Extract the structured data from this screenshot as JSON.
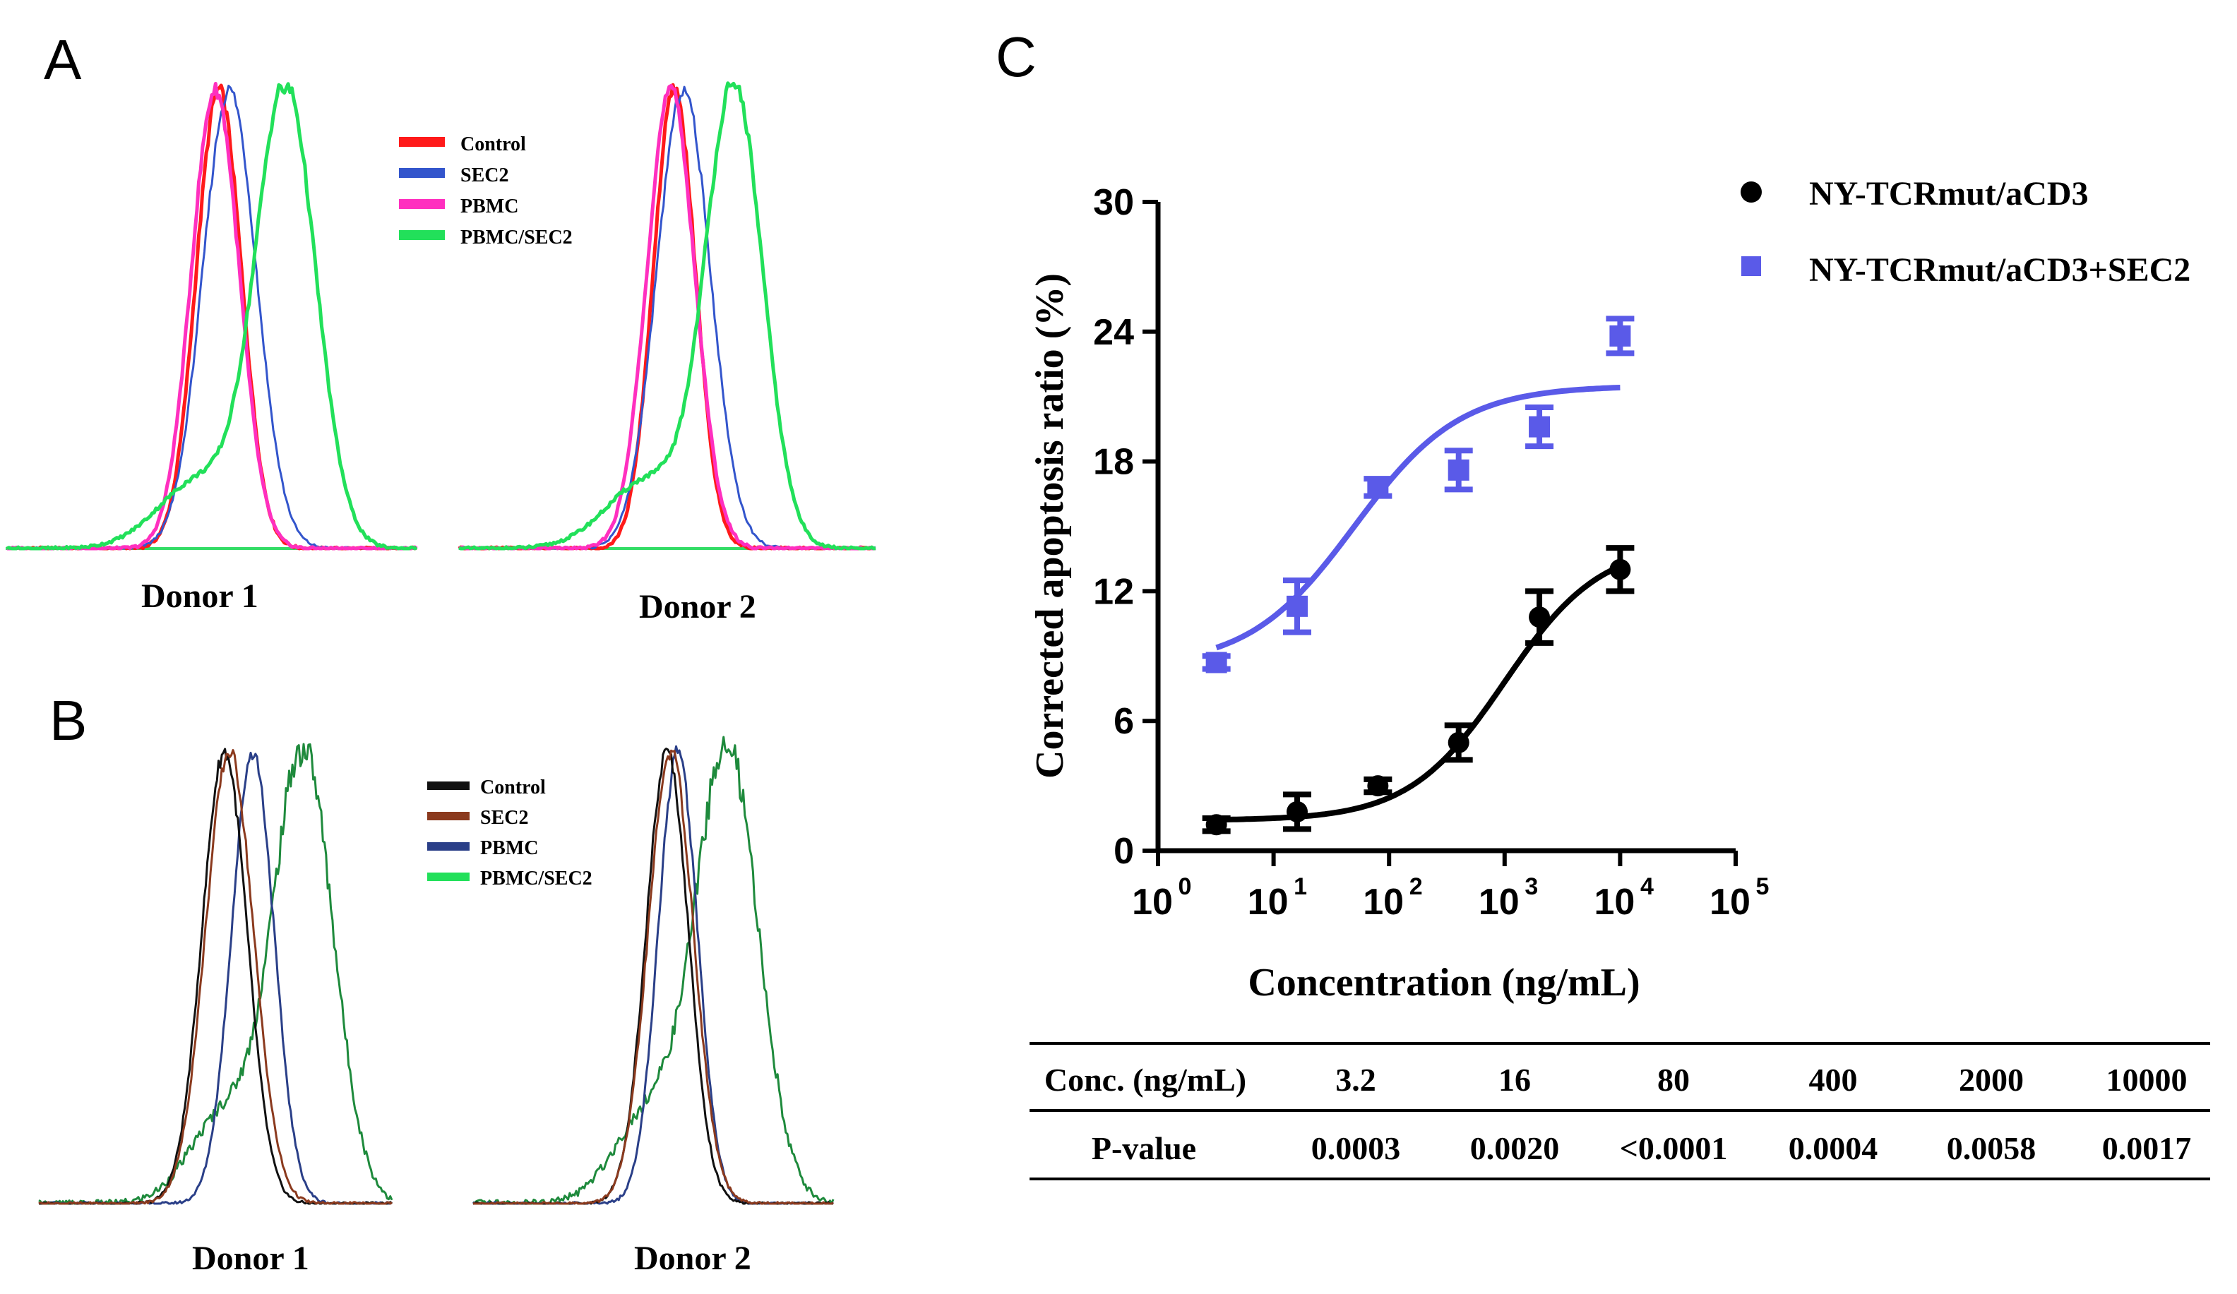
{
  "panels": {
    "a": {
      "letter": "A"
    },
    "b": {
      "letter": "B"
    },
    "c": {
      "letter": "C"
    }
  },
  "legend_a": {
    "items": [
      {
        "label": "Control",
        "color": "#ff1a1a"
      },
      {
        "label": "SEC2",
        "color": "#3355cc"
      },
      {
        "label": "PBMC",
        "color": "#ff2fbf"
      },
      {
        "label": "PBMC/SEC2",
        "color": "#22e05a"
      }
    ]
  },
  "legend_b": {
    "items": [
      {
        "label": "Control",
        "color": "#111111"
      },
      {
        "label": "SEC2",
        "color": "#8b3a1e"
      },
      {
        "label": "PBMC",
        "color": "#2a3f88"
      },
      {
        "label": "PBMC/SEC2",
        "color": "#1e8a3c"
      }
    ]
  },
  "donors": {
    "donor1": "Donor 1",
    "donor2": "Donor 2"
  },
  "chart_data": {
    "type": "scatter",
    "title": "",
    "xlabel": "Concentration (ng/mL)",
    "ylabel": "Corrected apoptosis ratio (%)",
    "x_scale": "log10",
    "xlim": [
      1,
      100000
    ],
    "ylim": [
      0,
      30
    ],
    "grid": false,
    "legend_position": "top-right",
    "x_ticks": [
      {
        "base": "10",
        "exp": "0"
      },
      {
        "base": "10",
        "exp": "1"
      },
      {
        "base": "10",
        "exp": "2"
      },
      {
        "base": "10",
        "exp": "3"
      },
      {
        "base": "10",
        "exp": "4"
      },
      {
        "base": "10",
        "exp": "5"
      }
    ],
    "y_ticks": [
      "0",
      "6",
      "12",
      "18",
      "24",
      "30"
    ],
    "x": [
      3.2,
      16,
      80,
      400,
      2000,
      10000
    ],
    "series": [
      {
        "name": "NY-TCRmut/aCD3",
        "marker": "circle",
        "color": "#000000",
        "values": [
          1.2,
          1.8,
          3.0,
          5.0,
          10.8,
          13.0
        ],
        "errors": [
          0.3,
          0.8,
          0.3,
          0.8,
          1.2,
          1.0
        ]
      },
      {
        "name": "NY-TCRmut/aCD3+SEC2",
        "marker": "square",
        "color": "#5a5ae8",
        "values": [
          8.7,
          11.3,
          16.8,
          17.6,
          19.6,
          23.8
        ],
        "errors": [
          0.3,
          1.2,
          0.4,
          0.9,
          0.9,
          0.8
        ]
      }
    ]
  },
  "pvalue_table": {
    "header_label": "Conc. (ng/mL)",
    "row_label": "P-value",
    "concentrations": [
      "3.2",
      "16",
      "80",
      "400",
      "2000",
      "10000"
    ],
    "pvalues": [
      "0.0003",
      "0.0020",
      "<0.0001",
      "0.0004",
      "0.0058",
      "0.0017"
    ]
  }
}
